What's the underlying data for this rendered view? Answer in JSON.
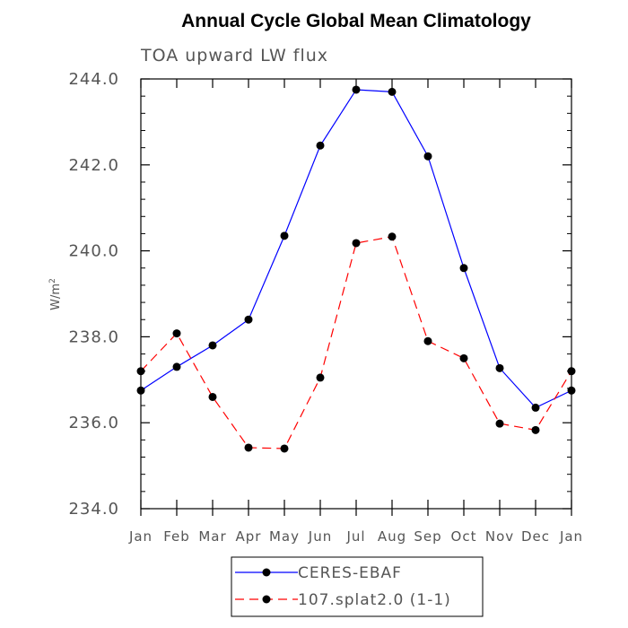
{
  "chart_data": {
    "type": "line",
    "title": "Annual Cycle Global Mean Climatology",
    "subtitle": "TOA upward LW flux",
    "ylabel_base": "W/m",
    "ylabel_sup": "2",
    "categories": [
      "Jan",
      "Feb",
      "Mar",
      "Apr",
      "May",
      "Jun",
      "Jul",
      "Aug",
      "Sep",
      "Oct",
      "Nov",
      "Dec",
      "Jan"
    ],
    "ylim": [
      234.0,
      244.0
    ],
    "yticks": [
      "234.0",
      "236.0",
      "238.0",
      "240.0",
      "242.0",
      "244.0"
    ],
    "ytick_values": [
      234,
      236,
      238,
      240,
      242,
      244
    ],
    "grid": false,
    "legend_position": "bottom-center",
    "series": [
      {
        "name": "CERES-EBAF",
        "color": "#0000ff",
        "dash": "solid",
        "values": [
          236.75,
          237.3,
          237.8,
          238.4,
          240.35,
          242.45,
          243.75,
          243.7,
          242.2,
          239.6,
          237.27,
          236.35,
          236.75
        ]
      },
      {
        "name": "107.splat2.0 (1-1)",
        "color": "#ff0000",
        "dash": "dashed",
        "values": [
          237.2,
          238.08,
          236.6,
          235.42,
          235.4,
          237.05,
          240.18,
          240.33,
          237.9,
          237.5,
          235.98,
          235.83,
          237.2
        ]
      }
    ]
  }
}
